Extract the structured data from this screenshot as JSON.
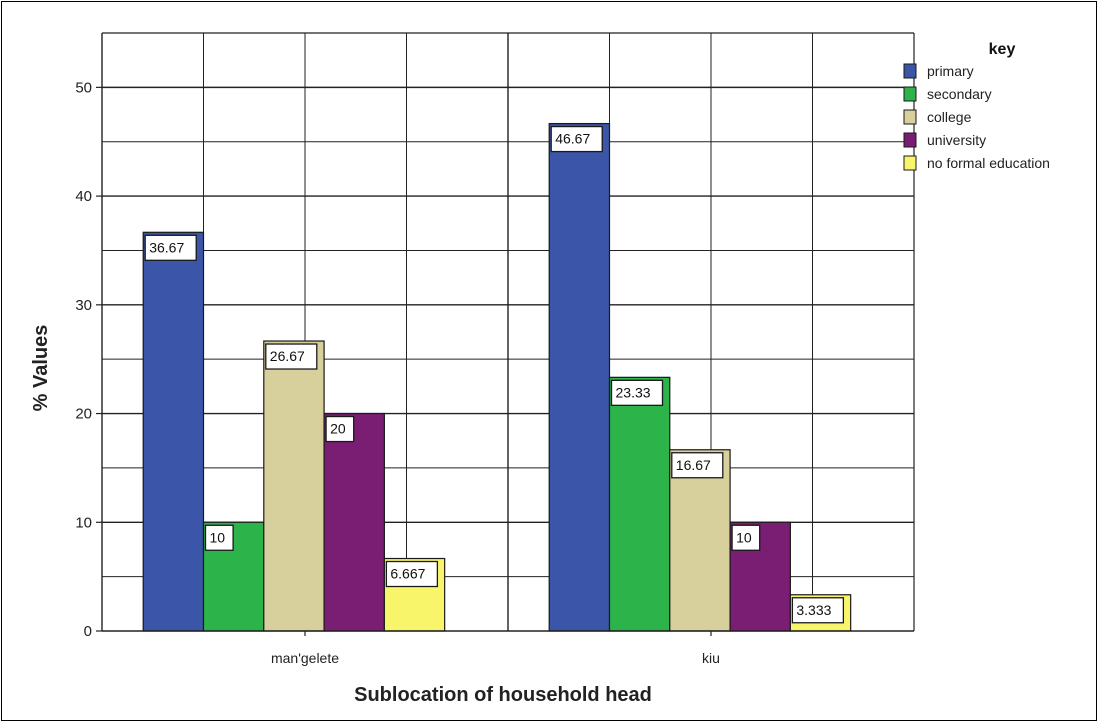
{
  "chart_data": {
    "type": "bar",
    "title": "",
    "xlabel": "Sublocation of household head",
    "ylabel": "% Values",
    "ylim": [
      0,
      55
    ],
    "yticks": [
      0,
      10,
      20,
      30,
      40,
      50
    ],
    "grid": true,
    "legend_position": "right",
    "legend_title": "key",
    "categories": [
      "man'gelete",
      "kiu"
    ],
    "series": [
      {
        "name": "primary",
        "color": "#3b55a8",
        "values": [
          36.67,
          46.67
        ],
        "labels": [
          "36.67",
          "46.67"
        ]
      },
      {
        "name": "secondary",
        "color": "#2cb34a",
        "values": [
          10,
          23.33
        ],
        "labels": [
          "10",
          "23.33"
        ]
      },
      {
        "name": "college",
        "color": "#d7cf9c",
        "values": [
          26.67,
          16.67
        ],
        "labels": [
          "26.67",
          "16.67"
        ]
      },
      {
        "name": "university",
        "color": "#7a1e73",
        "values": [
          20,
          10
        ],
        "labels": [
          "20",
          "10"
        ]
      },
      {
        "name": "no formal education",
        "color": "#f9f56a",
        "values": [
          6.667,
          3.333
        ],
        "labels": [
          "6.667",
          "3.333"
        ]
      }
    ]
  }
}
